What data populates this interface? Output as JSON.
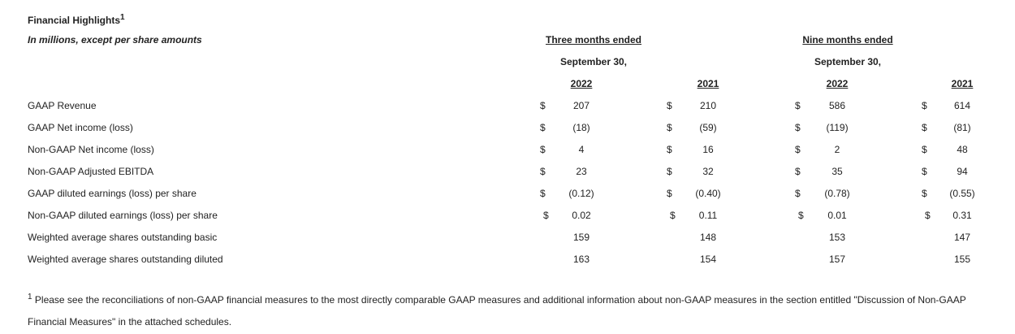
{
  "header": {
    "title": "Financial Highlights",
    "title_note": "1",
    "subtitle": "In millions, except per share amounts"
  },
  "table": {
    "periods": [
      {
        "label": "Three months ended",
        "date": "September 30,"
      },
      {
        "label": "Nine months ended",
        "date": "September 30,"
      }
    ],
    "years": [
      "2022",
      "2021",
      "2022",
      "2021"
    ],
    "rows": [
      {
        "label": "GAAP Revenue",
        "currency": "$",
        "values": [
          "207",
          "210",
          "586",
          "614"
        ]
      },
      {
        "label": "GAAP Net income (loss)",
        "currency": "$",
        "values": [
          "(18)",
          "(59)",
          "(119)",
          "(81)"
        ]
      },
      {
        "label": "Non-GAAP Net income (loss)",
        "currency": "$",
        "values": [
          "4",
          "16",
          "2",
          "48"
        ]
      },
      {
        "label": "Non-GAAP Adjusted EBITDA",
        "currency": "$",
        "values": [
          "23",
          "32",
          "35",
          "94"
        ]
      },
      {
        "label": "GAAP diluted earnings (loss) per share",
        "currency": "$",
        "values": [
          "(0.12)",
          "(0.40)",
          "(0.78)",
          "(0.55)"
        ]
      },
      {
        "label": "Non-GAAP diluted earnings (loss) per share",
        "currency": "$",
        "values": [
          "0.02",
          "0.11",
          "0.01",
          "0.31"
        ]
      },
      {
        "label": "Weighted average shares outstanding basic",
        "values": [
          "159",
          "148",
          "153",
          "147"
        ]
      },
      {
        "label": "Weighted average shares outstanding diluted",
        "values": [
          "163",
          "154",
          "157",
          "155"
        ]
      }
    ]
  },
  "footnote": {
    "marker": "1",
    "text": "Please see the reconciliations of non-GAAP financial measures to the most directly comparable GAAP measures and additional information about non-GAAP measures in the section entitled \"Discussion of Non-GAAP Financial Measures\" in the attached schedules."
  }
}
